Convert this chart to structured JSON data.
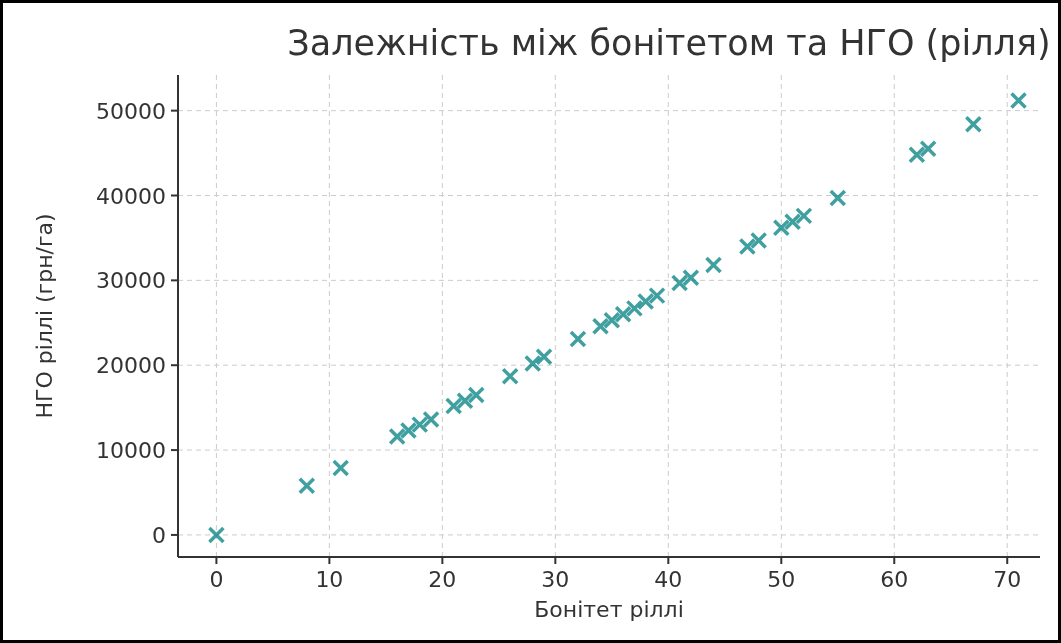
{
  "chart_data": {
    "type": "scatter",
    "title": "Залежність між бонітетом та НГО (рілля)",
    "xlabel": "Бонітет ріллі",
    "ylabel": "НГО ріллі (грн/га)",
    "x": [
      0,
      8,
      11,
      16,
      17,
      18,
      19,
      21,
      22,
      23,
      26,
      28,
      29,
      32,
      34,
      35,
      36,
      37,
      38,
      39,
      41,
      42,
      44,
      47,
      48,
      50,
      51,
      52,
      55,
      62,
      63,
      67,
      71
    ],
    "series": [
      {
        "color": "#008080",
        "values": [
          0,
          5800,
          7900,
          11600,
          12300,
          13000,
          13600,
          15200,
          15800,
          16500,
          18700,
          20200,
          21000,
          23100,
          24600,
          25300,
          26000,
          26700,
          27500,
          28200,
          29700,
          30300,
          31800,
          34000,
          34700,
          36200,
          36900,
          37600,
          39700,
          44800,
          45500,
          48400,
          51200
        ]
      }
    ],
    "xlim": [
      -3.4,
      72.9
    ],
    "ylim": [
      -2600,
      54200
    ],
    "xticks": [
      0,
      10,
      20,
      30,
      40,
      50,
      60,
      70
    ],
    "yticks": [
      0,
      10000,
      20000,
      30000,
      40000,
      50000
    ],
    "grid": true,
    "marker": "cross"
  }
}
